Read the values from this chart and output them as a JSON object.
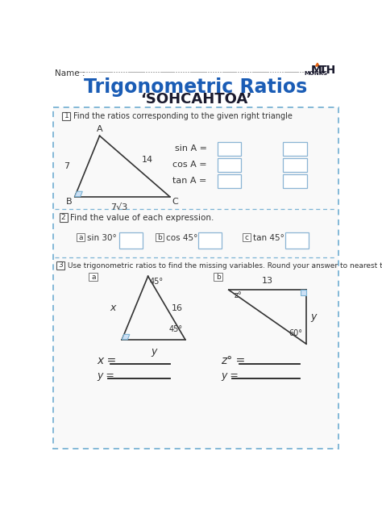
{
  "title": "Trigonometric Ratios",
  "subtitle": "‘SOHCAHTOA’",
  "title_color": "#1a5cb5",
  "subtitle_color": "#1a1a2e",
  "bg_color": "#f5f5f5",
  "name_label": "Name :",
  "section1_label": "Find the ratios corresponding to the given right triangle",
  "section2_label": "Find the value of each expression.",
  "section3_label": "Use trigonometric ratios to find the missing variables. Round your answer to nearest tenth",
  "ratios": [
    "sin A =",
    "cos A =",
    "tan A ="
  ],
  "expressions": [
    {
      "label": "a",
      "expr": "sin 30° ="
    },
    {
      "label": "b",
      "expr": "cos 45° ="
    },
    {
      "label": "c",
      "expr": "tan 45° ="
    }
  ],
  "dashed_border": "#7ab3d4",
  "right_angle_fill": "#cde0f5",
  "right_angle_ec": "#7ab3d4",
  "box_ec": "#8ab4d4",
  "section_num_ec": "#555555"
}
